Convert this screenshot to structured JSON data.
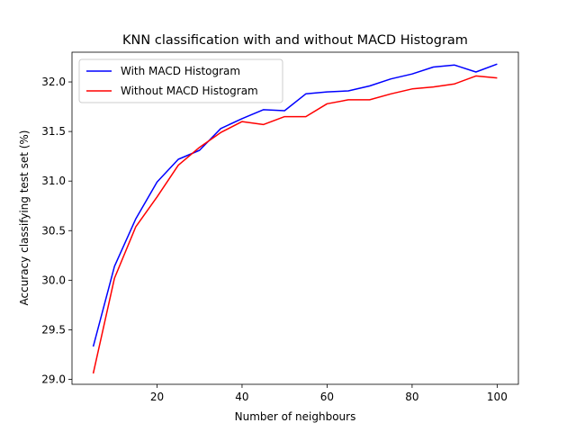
{
  "chart_data": {
    "type": "line",
    "title": "KNN classification with and without MACD Histogram",
    "xlabel": "Number of neighbours",
    "ylabel": "Accuracy classifying test set (%)",
    "xlim": [
      0,
      105
    ],
    "ylim": [
      28.95,
      32.3
    ],
    "xticks": [
      "20",
      "40",
      "60",
      "80",
      "100"
    ],
    "yticks": [
      "29.0",
      "29.5",
      "30.0",
      "30.5",
      "31.0",
      "31.5",
      "32.0"
    ],
    "x": [
      5,
      10,
      15,
      20,
      25,
      30,
      35,
      40,
      45,
      50,
      55,
      60,
      65,
      70,
      75,
      80,
      85,
      90,
      95,
      100
    ],
    "series": [
      {
        "name": "With MACD Histogram",
        "color": "#0000ff",
        "values": [
          29.33,
          30.14,
          30.62,
          30.99,
          31.22,
          31.31,
          31.53,
          31.63,
          31.72,
          31.71,
          31.88,
          31.9,
          31.91,
          31.96,
          32.03,
          32.08,
          32.15,
          32.17,
          32.1,
          32.18
        ]
      },
      {
        "name": "Without MACD Histogram",
        "color": "#ff0000",
        "values": [
          29.06,
          30.02,
          30.54,
          30.84,
          31.16,
          31.34,
          31.49,
          31.6,
          31.57,
          31.65,
          31.65,
          31.78,
          31.82,
          31.82,
          31.88,
          31.93,
          31.95,
          31.98,
          32.06,
          32.04
        ]
      }
    ],
    "legend_position": "top-left",
    "grid": false
  }
}
